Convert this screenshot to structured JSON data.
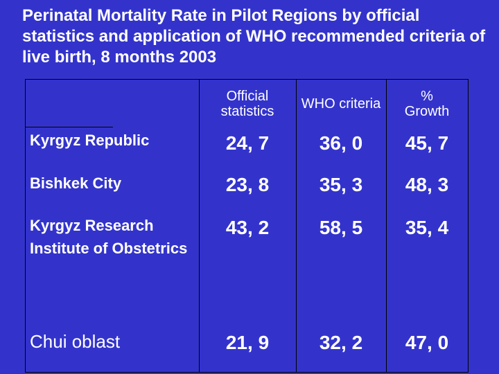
{
  "title": "Perinatal Mortality Rate in Pilot Regions by official statistics and application of WHO recommended criteria of live birth, 8 months 2003",
  "table": {
    "headers": [
      "Official statistics",
      "WHO criteria",
      "% Growth"
    ],
    "rows": [
      {
        "label": "Kyrgyz Republic",
        "values": [
          "24, 7",
          "36, 0",
          "45, 7"
        ]
      },
      {
        "label": "Bishkek City",
        "values": [
          "23, 8",
          "35, 3",
          "48, 3"
        ]
      },
      {
        "label": "Kyrgyz Research Institute of Obstetrics",
        "values": [
          "43, 2",
          "58, 5",
          "35, 4"
        ]
      },
      {
        "label": "Chui oblast",
        "values": [
          "21, 9",
          "32, 2",
          "47, 0"
        ]
      }
    ]
  }
}
